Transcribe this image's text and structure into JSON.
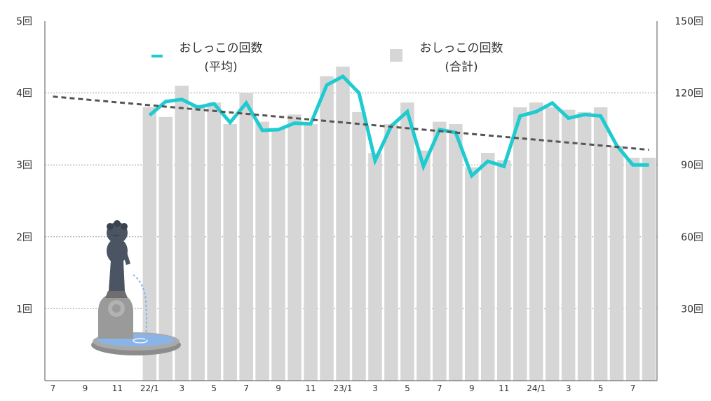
{
  "chart_data": {
    "type": "bar+line",
    "categories": [
      "21/7",
      "21/8",
      "21/9",
      "21/10",
      "21/11",
      "21/12",
      "22/1",
      "22/2",
      "22/3",
      "22/4",
      "22/5",
      "22/6",
      "22/7",
      "22/8",
      "22/9",
      "22/10",
      "22/11",
      "22/12",
      "23/1",
      "23/2",
      "23/3",
      "23/4",
      "23/5",
      "23/6",
      "23/7",
      "23/8",
      "23/9",
      "23/10",
      "23/11",
      "23/12",
      "24/1",
      "24/2",
      "24/3",
      "24/4",
      "24/5",
      "24/6",
      "24/7",
      "24/8"
    ],
    "x_tick_labels": [
      "7",
      "9",
      "11",
      "22/1",
      "3",
      "5",
      "7",
      "9",
      "11",
      "23/1",
      "3",
      "5",
      "7",
      "9",
      "11",
      "24/1",
      "3",
      "5",
      "7"
    ],
    "series": [
      {
        "name": "おしっこの回数\n(合計)",
        "type": "bar",
        "axis": "right",
        "color": "#d6d6d6",
        "values": [
          null,
          null,
          null,
          null,
          null,
          null,
          114,
          110,
          123,
          115,
          116,
          107,
          120,
          108,
          105,
          111,
          107,
          127,
          131,
          112,
          95,
          107,
          116,
          96,
          108,
          107,
          89,
          95,
          92,
          114,
          116,
          114,
          113,
          112,
          114,
          98,
          93,
          93
        ]
      },
      {
        "name": "おしっこの回数\n(平均)",
        "type": "line",
        "axis": "left",
        "color": "#1dcbd0",
        "values": [
          null,
          null,
          null,
          null,
          null,
          null,
          3.69,
          3.88,
          3.91,
          3.8,
          3.85,
          3.59,
          3.86,
          3.48,
          3.49,
          3.58,
          3.57,
          4.11,
          4.23,
          4.0,
          3.06,
          3.54,
          3.74,
          2.98,
          3.49,
          3.45,
          2.85,
          3.05,
          2.98,
          3.68,
          3.74,
          3.86,
          3.65,
          3.7,
          3.68,
          3.27,
          3.0,
          3.0
        ]
      },
      {
        "name": "trend",
        "type": "line",
        "style": "dashed",
        "axis": "left",
        "color": "#555555",
        "values": [
          3.95,
          3.93,
          3.91,
          3.89,
          3.87,
          3.85,
          3.83,
          3.81,
          3.79,
          3.77,
          3.75,
          3.73,
          3.71,
          3.69,
          3.67,
          3.65,
          3.63,
          3.61,
          3.59,
          3.57,
          3.55,
          3.53,
          3.51,
          3.49,
          3.47,
          3.45,
          3.43,
          3.41,
          3.39,
          3.37,
          3.35,
          3.33,
          3.31,
          3.29,
          3.27,
          3.25,
          3.23,
          3.21
        ]
      }
    ],
    "left_axis": {
      "ylim": [
        0,
        5
      ],
      "ticks": [
        {
          "v": 1,
          "label": "1回"
        },
        {
          "v": 2,
          "label": "2回"
        },
        {
          "v": 3,
          "label": "3回"
        },
        {
          "v": 4,
          "label": "4回"
        },
        {
          "v": 5,
          "label": "5回"
        }
      ]
    },
    "right_axis": {
      "ylim": [
        0,
        150
      ],
      "ticks": [
        {
          "v": 30,
          "label": "30回"
        },
        {
          "v": 60,
          "label": "60回"
        },
        {
          "v": 90,
          "label": "90回"
        },
        {
          "v": 120,
          "label": "120回"
        },
        {
          "v": 150,
          "label": "150回"
        }
      ]
    },
    "legend": [
      {
        "line1": "おしっこの回数",
        "line2": "(平均)",
        "marker": "line",
        "color": "#1dcbd0"
      },
      {
        "line1": "おしっこの回数",
        "line2": "(合計)",
        "marker": "square",
        "color": "#d6d6d6"
      }
    ],
    "grid": true,
    "legend_position": "top"
  }
}
